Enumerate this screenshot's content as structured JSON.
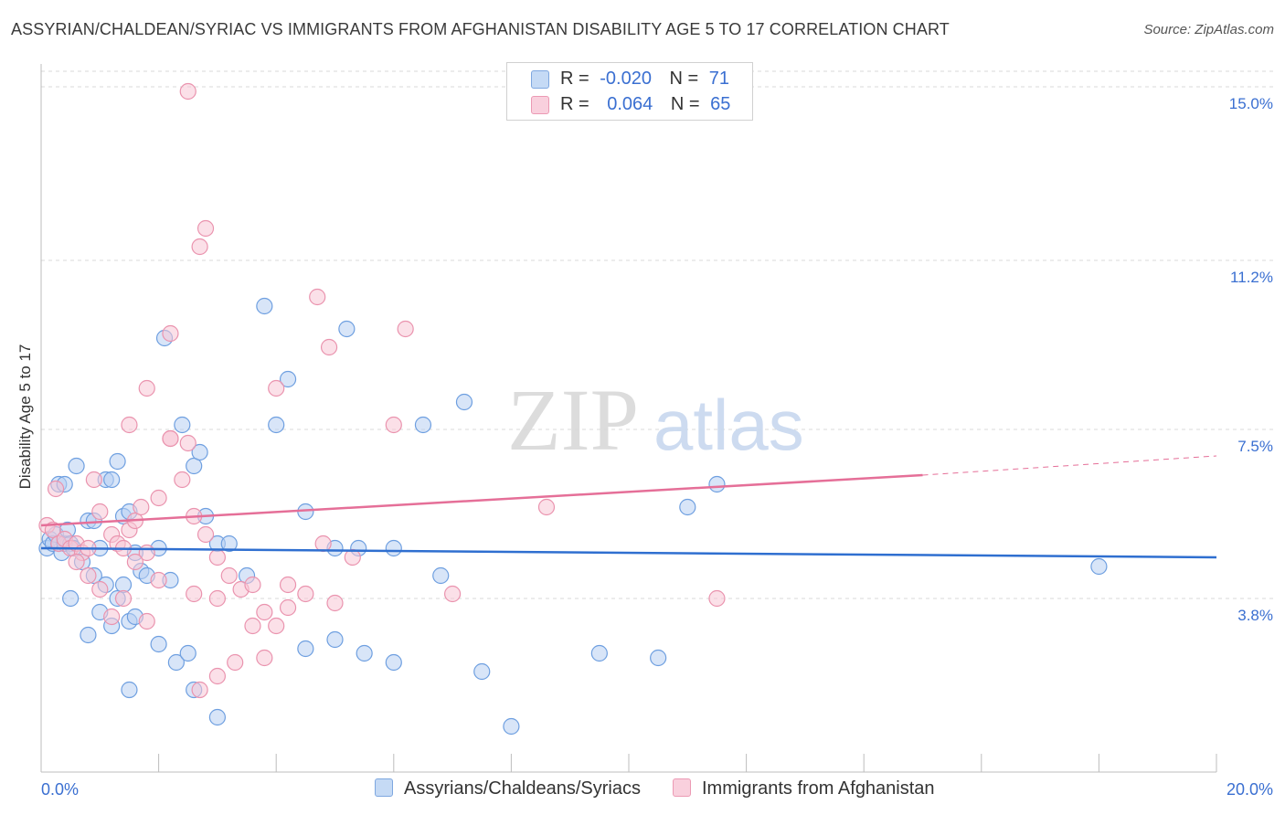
{
  "header": {
    "title": "ASSYRIAN/CHALDEAN/SYRIAC VS IMMIGRANTS FROM AFGHANISTAN DISABILITY AGE 5 TO 17 CORRELATION CHART",
    "source": "Source: ZipAtlas.com"
  },
  "watermark": {
    "zip": "ZIP",
    "atlas": "atlas"
  },
  "legend": {
    "rows": [
      {
        "r_label": "R =",
        "r_value": "-0.020",
        "n_label": "N =",
        "n_value": "71",
        "color": "#a9c6f0"
      },
      {
        "r_label": "R =",
        "r_value": "0.064",
        "n_label": "N =",
        "n_value": "65",
        "color": "#f5b8cb"
      }
    ]
  },
  "colors": {
    "blue": "#6e9fe0",
    "blue_fill": "#b8d0f2",
    "blue_line": "#2f6fd0",
    "pink": "#ea93ae",
    "pink_fill": "#f7c7d6",
    "pink_line": "#e56f98",
    "tick_label": "#3a6fd1",
    "grid": "#d8d8d8"
  },
  "chart_data": {
    "type": "scatter",
    "title": "ASSYRIAN/CHALDEAN/SYRIAC VS IMMIGRANTS FROM AFGHANISTAN DISABILITY AGE 5 TO 17 CORRELATION CHART",
    "xlabel": "",
    "ylabel": "Disability Age 5 to 17",
    "xlim": [
      0,
      20
    ],
    "ylim": [
      0,
      15.5
    ],
    "x_tick_labels": [
      "0.0%",
      "20.0%"
    ],
    "y_ticks": [
      3.8,
      7.5,
      11.2,
      15.0
    ],
    "y_tick_labels": [
      "3.8%",
      "7.5%",
      "11.2%",
      "15.0%"
    ],
    "grid": true,
    "series": [
      {
        "name": "Assyrians/Chaldeans/Syriacs",
        "color": "#6e9fe0",
        "points": [
          [
            0.1,
            4.9
          ],
          [
            0.15,
            5.1
          ],
          [
            0.2,
            5.0
          ],
          [
            0.25,
            5.2
          ],
          [
            0.3,
            5.0
          ],
          [
            0.35,
            4.8
          ],
          [
            0.4,
            5.0
          ],
          [
            0.45,
            5.3
          ],
          [
            0.5,
            5.0
          ],
          [
            0.55,
            4.9
          ],
          [
            0.3,
            6.3
          ],
          [
            0.4,
            6.3
          ],
          [
            0.6,
            6.7
          ],
          [
            0.8,
            5.5
          ],
          [
            0.9,
            5.5
          ],
          [
            1.0,
            4.9
          ],
          [
            1.1,
            6.4
          ],
          [
            1.2,
            6.4
          ],
          [
            1.3,
            6.8
          ],
          [
            1.4,
            5.6
          ],
          [
            1.5,
            5.7
          ],
          [
            1.6,
            4.8
          ],
          [
            0.7,
            4.6
          ],
          [
            0.9,
            4.3
          ],
          [
            1.1,
            4.1
          ],
          [
            1.3,
            3.8
          ],
          [
            1.4,
            4.1
          ],
          [
            1.5,
            3.3
          ],
          [
            1.6,
            3.4
          ],
          [
            1.7,
            4.4
          ],
          [
            1.8,
            4.3
          ],
          [
            2.0,
            4.9
          ],
          [
            2.1,
            9.5
          ],
          [
            2.2,
            4.2
          ],
          [
            2.4,
            7.6
          ],
          [
            2.6,
            6.7
          ],
          [
            2.7,
            7.0
          ],
          [
            2.8,
            5.6
          ],
          [
            3.0,
            5.0
          ],
          [
            3.2,
            5.0
          ],
          [
            3.5,
            4.3
          ],
          [
            3.8,
            10.2
          ],
          [
            4.0,
            7.6
          ],
          [
            4.2,
            8.6
          ],
          [
            4.5,
            5.7
          ],
          [
            5.0,
            4.9
          ],
          [
            5.2,
            9.7
          ],
          [
            5.4,
            4.9
          ],
          [
            6.0,
            4.9
          ],
          [
            6.5,
            7.6
          ],
          [
            6.8,
            4.3
          ],
          [
            7.2,
            8.1
          ],
          [
            0.5,
            3.8
          ],
          [
            0.8,
            3.0
          ],
          [
            1.0,
            3.5
          ],
          [
            1.2,
            3.2
          ],
          [
            1.5,
            1.8
          ],
          [
            2.0,
            2.8
          ],
          [
            2.3,
            2.4
          ],
          [
            2.5,
            2.6
          ],
          [
            2.6,
            1.8
          ],
          [
            3.0,
            1.2
          ],
          [
            4.5,
            2.7
          ],
          [
            5.0,
            2.9
          ],
          [
            5.5,
            2.6
          ],
          [
            6.0,
            2.4
          ],
          [
            7.5,
            2.2
          ],
          [
            8.0,
            1.0
          ],
          [
            9.5,
            2.6
          ],
          [
            10.5,
            2.5
          ],
          [
            11.0,
            5.8
          ],
          [
            11.5,
            6.3
          ],
          [
            18.0,
            4.5
          ]
        ]
      },
      {
        "name": "Immigrants from Afghanistan",
        "color": "#ea93ae",
        "points": [
          [
            0.1,
            5.4
          ],
          [
            0.2,
            5.3
          ],
          [
            0.3,
            5.0
          ],
          [
            0.4,
            5.1
          ],
          [
            0.5,
            4.9
          ],
          [
            0.6,
            5.0
          ],
          [
            0.7,
            4.8
          ],
          [
            0.8,
            4.9
          ],
          [
            0.25,
            6.2
          ],
          [
            0.9,
            6.4
          ],
          [
            1.0,
            5.7
          ],
          [
            1.2,
            5.2
          ],
          [
            1.3,
            5.0
          ],
          [
            1.4,
            4.9
          ],
          [
            1.5,
            5.3
          ],
          [
            1.6,
            5.5
          ],
          [
            1.7,
            5.8
          ],
          [
            1.8,
            4.8
          ],
          [
            2.0,
            6.0
          ],
          [
            2.2,
            7.3
          ],
          [
            2.4,
            6.4
          ],
          [
            2.6,
            5.6
          ],
          [
            2.8,
            5.2
          ],
          [
            1.5,
            7.6
          ],
          [
            1.8,
            8.4
          ],
          [
            2.2,
            9.6
          ],
          [
            2.5,
            14.9
          ],
          [
            2.8,
            11.9
          ],
          [
            2.7,
            11.5
          ],
          [
            4.0,
            8.4
          ],
          [
            4.7,
            10.4
          ],
          [
            4.9,
            9.3
          ],
          [
            6.0,
            7.6
          ],
          [
            6.2,
            9.7
          ],
          [
            2.2,
            7.3
          ],
          [
            2.5,
            7.2
          ],
          [
            3.0,
            4.7
          ],
          [
            3.2,
            4.3
          ],
          [
            3.4,
            4.0
          ],
          [
            3.6,
            4.1
          ],
          [
            3.8,
            3.5
          ],
          [
            4.0,
            3.2
          ],
          [
            4.2,
            4.1
          ],
          [
            4.5,
            3.9
          ],
          [
            4.8,
            5.0
          ],
          [
            5.0,
            3.7
          ],
          [
            5.3,
            4.7
          ],
          [
            0.6,
            4.6
          ],
          [
            0.8,
            4.3
          ],
          [
            1.0,
            4.0
          ],
          [
            1.2,
            3.4
          ],
          [
            1.4,
            3.8
          ],
          [
            1.6,
            4.6
          ],
          [
            1.8,
            3.3
          ],
          [
            2.0,
            4.2
          ],
          [
            2.6,
            3.9
          ],
          [
            3.0,
            3.8
          ],
          [
            3.3,
            2.4
          ],
          [
            3.6,
            3.2
          ],
          [
            3.8,
            2.5
          ],
          [
            4.2,
            3.6
          ],
          [
            7.0,
            3.9
          ],
          [
            8.6,
            5.8
          ],
          [
            11.5,
            3.8
          ],
          [
            2.7,
            1.8
          ],
          [
            3.0,
            2.1
          ]
        ]
      }
    ],
    "trend_lines": [
      {
        "series": "Assyrians/Chaldeans/Syriacs",
        "x": [
          0,
          20
        ],
        "y": [
          4.9,
          4.7
        ],
        "style": "solid"
      },
      {
        "series": "Immigrants from Afghanistan",
        "x": [
          0,
          15
        ],
        "y": [
          5.4,
          6.5
        ],
        "style": "solid"
      },
      {
        "series": "Immigrants from Afghanistan",
        "x": [
          15,
          20
        ],
        "y": [
          6.5,
          6.92
        ],
        "style": "dashed"
      }
    ],
    "legend_position": "top-center"
  }
}
